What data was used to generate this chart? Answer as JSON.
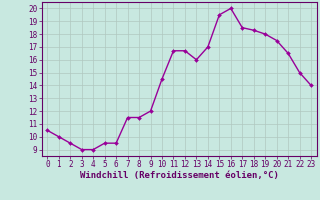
{
  "x": [
    0,
    1,
    2,
    3,
    4,
    5,
    6,
    7,
    8,
    9,
    10,
    11,
    12,
    13,
    14,
    15,
    16,
    17,
    18,
    19,
    20,
    21,
    22,
    23
  ],
  "y": [
    10.5,
    10.0,
    9.5,
    9.0,
    9.0,
    9.5,
    9.5,
    11.5,
    11.5,
    12.0,
    14.5,
    16.7,
    16.7,
    16.0,
    17.0,
    19.5,
    20.0,
    18.5,
    18.3,
    18.0,
    17.5,
    16.5,
    15.0,
    14.0
  ],
  "line_color": "#990099",
  "marker": "D",
  "marker_size": 2.0,
  "bg_color": "#c8e8e0",
  "grid_color": "#b0c8c0",
  "xlabel": "Windchill (Refroidissement éolien,°C)",
  "ylabel": "",
  "xlim": [
    -0.5,
    23.5
  ],
  "ylim": [
    8.5,
    20.5
  ],
  "yticks": [
    9,
    10,
    11,
    12,
    13,
    14,
    15,
    16,
    17,
    18,
    19,
    20
  ],
  "xticks": [
    0,
    1,
    2,
    3,
    4,
    5,
    6,
    7,
    8,
    9,
    10,
    11,
    12,
    13,
    14,
    15,
    16,
    17,
    18,
    19,
    20,
    21,
    22,
    23
  ],
  "tick_fontsize": 5.5,
  "xlabel_fontsize": 6.5,
  "line_width": 1.0
}
